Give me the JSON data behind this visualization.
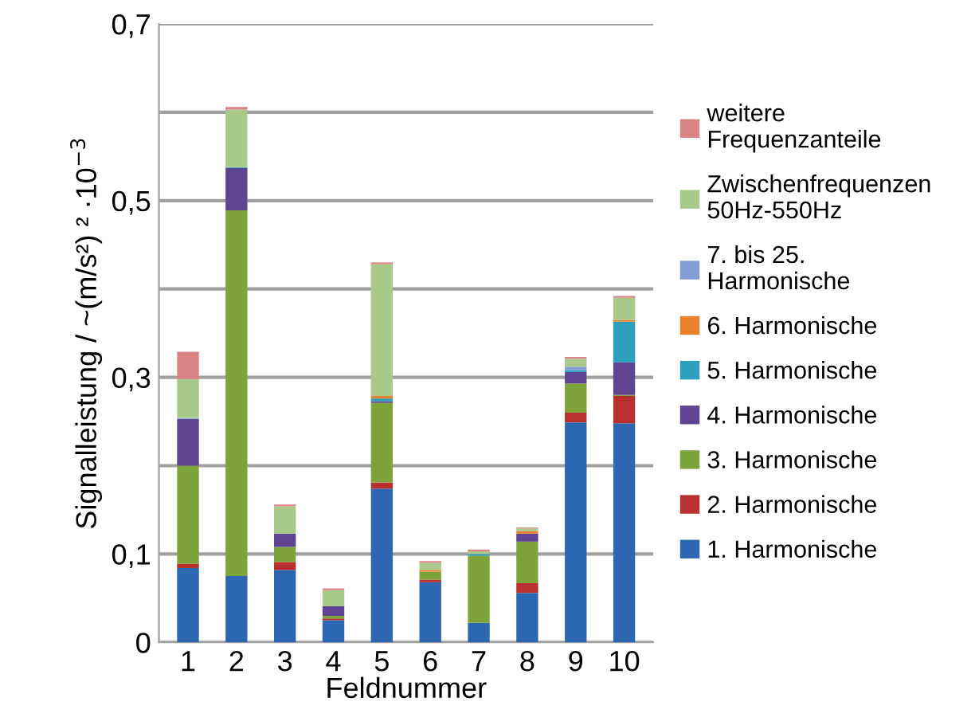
{
  "chart_data": {
    "type": "bar",
    "stacked": true,
    "xlabel": "Feldnummer",
    "ylabel": "Signalleistung / ~(m/s²) ² ·10$^{−3}$",
    "categories": [
      "1",
      "2",
      "3",
      "4",
      "5",
      "6",
      "7",
      "8",
      "9",
      "10"
    ],
    "ylim": [
      0,
      0.7
    ],
    "yticks": [
      0,
      {
        "value": 0.1,
        "label": "0,1"
      },
      {
        "value": 0.2,
        "label": null
      },
      {
        "value": 0.3,
        "label": "0,3"
      },
      {
        "value": 0.4,
        "label": null
      },
      {
        "value": 0.5,
        "label": "0,5"
      },
      {
        "value": 0.6,
        "label": null
      },
      {
        "value": 0.7,
        "label": "0,7"
      }
    ],
    "grid": "y",
    "legend": "right",
    "series": [
      {
        "name": "1. Harmonische",
        "color": "#2e67b1",
        "values": [
          0.084,
          0.075,
          0.082,
          0.025,
          0.174,
          0.068,
          0.022,
          0.056,
          0.249,
          0.248
        ]
      },
      {
        "name": "2. Harmonische",
        "color": "#b8312f",
        "values": [
          0.005,
          0,
          0.009,
          0.002,
          0.007,
          0.003,
          0,
          0.011,
          0.011,
          0.031
        ]
      },
      {
        "name": "3. Harmonische",
        "color": "#7ea33a",
        "values": [
          0.111,
          0.414,
          0.017,
          0.003,
          0.09,
          0.009,
          0.076,
          0.047,
          0.033,
          0.001
        ]
      },
      {
        "name": "4. Harmonische",
        "color": "#5f4591",
        "values": [
          0.053,
          0.048,
          0.015,
          0.011,
          0.002,
          0,
          0,
          0.009,
          0.013,
          0.037
        ]
      },
      {
        "name": "5. Harmonische",
        "color": "#2b9fbd",
        "values": [
          0,
          0.001,
          0,
          0,
          0.003,
          0,
          0.002,
          0,
          0.002,
          0.046
        ]
      },
      {
        "name": "6. Harmonische",
        "color": "#e8802c",
        "values": [
          0,
          0,
          0,
          0,
          0.003,
          0.002,
          0,
          0.003,
          0,
          0.002
        ]
      },
      {
        "name": "7. bis 25.\nHarmonische",
        "color": "#809ed1",
        "values": [
          0.001,
          0,
          0,
          0,
          0,
          0,
          0,
          0,
          0.004,
          0
        ]
      },
      {
        "name": "Zwischenfrequenzen\n50Hz-550Hz",
        "color": "#a8c98a",
        "values": [
          0.044,
          0.065,
          0.031,
          0.018,
          0.149,
          0.008,
          0.003,
          0.003,
          0.009,
          0.025
        ]
      },
      {
        "name": "weitere\nFrequenzanteile",
        "color": "#d98484",
        "values": [
          0.031,
          0.003,
          0.002,
          0.002,
          0.002,
          0.002,
          0.002,
          0.001,
          0.002,
          0.002
        ]
      }
    ]
  }
}
